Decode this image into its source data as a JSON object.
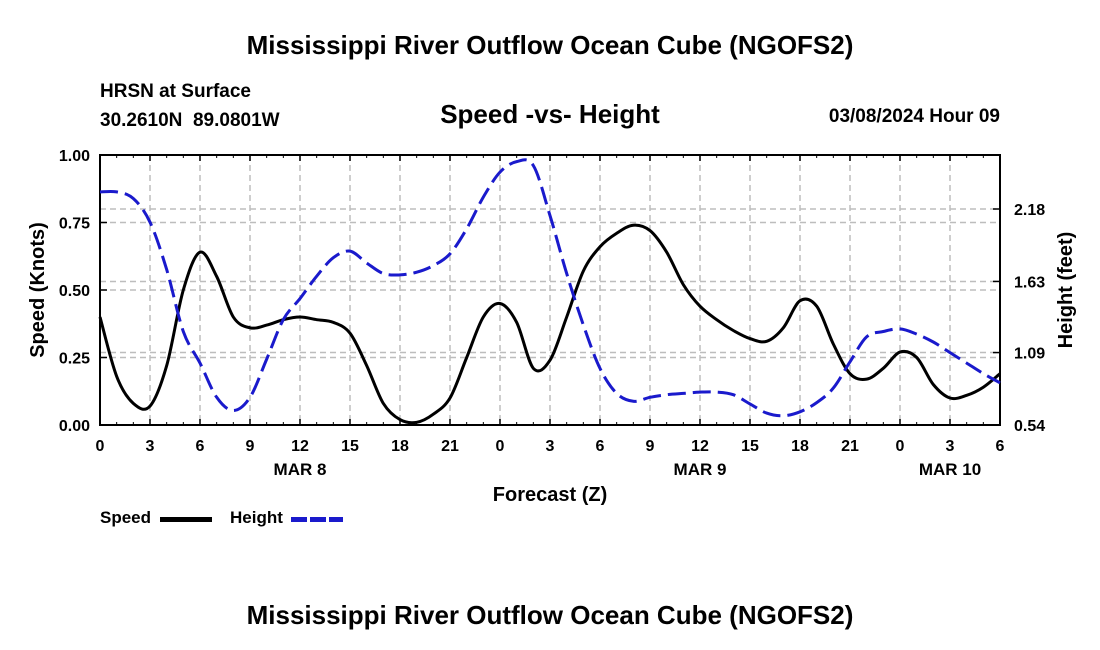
{
  "header": {
    "title": "Mississippi River Outflow Ocean Cube (NGOFS2)",
    "station_name": "HRSN at Surface",
    "coordinates": "30.2610N  89.0801W",
    "subtitle": "Speed -vs- Height",
    "datetime": "03/08/2024 Hour 09",
    "footer_title": "Mississippi River Outflow Ocean Cube (NGOFS2)"
  },
  "legend": {
    "speed_label": "Speed",
    "height_label": "Height"
  },
  "colors": {
    "speed": "#000000",
    "height": "#1a1acc",
    "grid": "#bdbdbd"
  },
  "chart_data": {
    "type": "line",
    "title": "Speed -vs- Height",
    "xlabel": "Forecast (Z)",
    "ylabel_left": "Speed (Knots)",
    "ylabel_right": "Height (feet)",
    "x_unit": "hours from 03/08 00Z",
    "xlim": [
      0,
      54
    ],
    "ylim_left": [
      0,
      1.0
    ],
    "ylim_right": [
      0.54,
      2.59
    ],
    "x_ticks": [
      0,
      3,
      6,
      9,
      12,
      15,
      18,
      21,
      24,
      27,
      30,
      33,
      36,
      39,
      42,
      45,
      48,
      51,
      54
    ],
    "x_tick_labels": [
      "0",
      "3",
      "6",
      "9",
      "12",
      "15",
      "18",
      "21",
      "0",
      "3",
      "6",
      "9",
      "12",
      "15",
      "18",
      "21",
      "0",
      "3",
      "6"
    ],
    "day_labels": [
      {
        "x": 12,
        "label": "MAR 8"
      },
      {
        "x": 36,
        "label": "MAR 9"
      },
      {
        "x": 51,
        "label": "MAR 10"
      }
    ],
    "y_left_ticks": [
      0.0,
      0.25,
      0.5,
      0.75,
      1.0
    ],
    "y_left_tick_labels": [
      "0.00",
      "0.25",
      "0.50",
      "0.75",
      "1.00"
    ],
    "y_right_ticks": [
      0.54,
      1.09,
      1.63,
      2.18
    ],
    "y_right_tick_labels": [
      "0.54",
      "1.09",
      "1.63",
      "2.18"
    ],
    "grid": true,
    "series": [
      {
        "name": "Speed",
        "axis": "left",
        "style": "solid",
        "x": [
          0,
          1,
          2,
          3,
          4,
          5,
          6,
          7,
          8,
          9,
          10,
          11,
          12,
          13,
          14,
          15,
          16,
          17,
          18,
          19,
          20,
          21,
          22,
          23,
          24,
          25,
          26,
          27,
          28,
          29,
          30,
          31,
          32,
          33,
          34,
          35,
          36,
          37,
          38,
          39,
          40,
          41,
          42,
          43,
          44,
          45,
          46,
          47,
          48,
          49,
          50,
          51,
          52,
          53,
          54
        ],
        "values": [
          0.4,
          0.18,
          0.08,
          0.07,
          0.22,
          0.5,
          0.64,
          0.55,
          0.4,
          0.36,
          0.37,
          0.39,
          0.4,
          0.39,
          0.38,
          0.34,
          0.22,
          0.08,
          0.02,
          0.01,
          0.04,
          0.1,
          0.25,
          0.4,
          0.45,
          0.38,
          0.21,
          0.24,
          0.4,
          0.57,
          0.66,
          0.71,
          0.74,
          0.72,
          0.64,
          0.52,
          0.44,
          0.39,
          0.35,
          0.32,
          0.31,
          0.36,
          0.46,
          0.44,
          0.3,
          0.19,
          0.17,
          0.21,
          0.27,
          0.25,
          0.15,
          0.1,
          0.11,
          0.14,
          0.19
        ]
      },
      {
        "name": "Height",
        "axis": "right",
        "style": "dashed",
        "x": [
          0,
          1,
          2,
          3,
          4,
          5,
          6,
          7,
          8,
          9,
          10,
          11,
          12,
          13,
          14,
          15,
          16,
          17,
          18,
          19,
          20,
          21,
          22,
          23,
          24,
          25,
          26,
          27,
          28,
          29,
          30,
          31,
          32,
          33,
          34,
          35,
          36,
          37,
          38,
          39,
          40,
          41,
          42,
          43,
          44,
          45,
          46,
          47,
          48,
          49,
          50,
          51,
          52,
          53,
          54
        ],
        "values": [
          2.31,
          2.31,
          2.26,
          2.08,
          1.72,
          1.25,
          1.01,
          0.75,
          0.65,
          0.75,
          1.04,
          1.34,
          1.5,
          1.67,
          1.81,
          1.86,
          1.77,
          1.69,
          1.68,
          1.7,
          1.75,
          1.84,
          2.03,
          2.27,
          2.46,
          2.54,
          2.51,
          2.13,
          1.69,
          1.3,
          0.97,
          0.78,
          0.72,
          0.75,
          0.77,
          0.78,
          0.79,
          0.79,
          0.77,
          0.7,
          0.63,
          0.61,
          0.64,
          0.71,
          0.82,
          1.02,
          1.21,
          1.25,
          1.27,
          1.23,
          1.17,
          1.09,
          1.01,
          0.93,
          0.86
        ]
      }
    ]
  }
}
